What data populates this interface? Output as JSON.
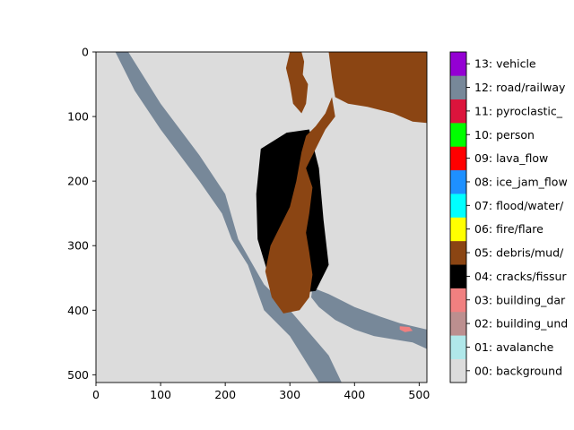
{
  "chart_data": {
    "type": "heatmap",
    "subtype": "segmentation-mask",
    "image_size": [
      512,
      512
    ],
    "x_ticks": [
      "0",
      "100",
      "200",
      "300",
      "400",
      "500"
    ],
    "y_ticks": [
      "0",
      "100",
      "200",
      "300",
      "400",
      "500"
    ],
    "x_tick_values": [
      0,
      100,
      200,
      300,
      400,
      500
    ],
    "y_tick_values": [
      0,
      100,
      200,
      300,
      400,
      500
    ],
    "xlim": [
      0,
      512
    ],
    "ylim": [
      512,
      0
    ],
    "legend_position": "right colorbar",
    "classes": [
      {
        "id": 0,
        "label": "00: background",
        "color": "#dcdcdc"
      },
      {
        "id": 1,
        "label": "01: avalanche",
        "color": "#b0e8ea"
      },
      {
        "id": 2,
        "label": "02: building_und",
        "color": "#bc8f8f"
      },
      {
        "id": 3,
        "label": "03: building_dar",
        "color": "#f08080"
      },
      {
        "id": 4,
        "label": "04: cracks/fissur",
        "color": "#000000"
      },
      {
        "id": 5,
        "label": "05: debris/mud/",
        "color": "#8b4513"
      },
      {
        "id": 6,
        "label": "06: fire/flare",
        "color": "#ffff00"
      },
      {
        "id": 7,
        "label": "07: flood/water/",
        "color": "#00ffff"
      },
      {
        "id": 8,
        "label": "08: ice_jam_flow",
        "color": "#1e90ff"
      },
      {
        "id": 9,
        "label": "09: lava_flow",
        "color": "#ff0000"
      },
      {
        "id": 10,
        "label": "10: person",
        "color": "#00ff00"
      },
      {
        "id": 11,
        "label": "11: pyroclastic_",
        "color": "#dc143c"
      },
      {
        "id": 12,
        "label": "12: road/railway",
        "color": "#778899"
      },
      {
        "id": 13,
        "label": "13: vehicle",
        "color": "#9400d3"
      }
    ],
    "regions": [
      {
        "class": 12,
        "name": "road-left-diagonal",
        "polygon": [
          [
            30,
            0
          ],
          [
            50,
            0
          ],
          [
            100,
            80
          ],
          [
            160,
            160
          ],
          [
            200,
            220
          ],
          [
            220,
            290
          ],
          [
            260,
            360
          ],
          [
            300,
            400
          ],
          [
            360,
            470
          ],
          [
            380,
            512
          ],
          [
            345,
            512
          ],
          [
            300,
            440
          ],
          [
            260,
            400
          ],
          [
            235,
            330
          ],
          [
            210,
            290
          ],
          [
            195,
            250
          ],
          [
            160,
            200
          ],
          [
            100,
            120
          ],
          [
            60,
            60
          ]
        ]
      },
      {
        "class": 12,
        "name": "road-right-branch",
        "polygon": [
          [
            335,
            365
          ],
          [
            360,
            375
          ],
          [
            400,
            395
          ],
          [
            440,
            410
          ],
          [
            470,
            420
          ],
          [
            512,
            430
          ],
          [
            512,
            460
          ],
          [
            490,
            450
          ],
          [
            460,
            445
          ],
          [
            430,
            440
          ],
          [
            400,
            430
          ],
          [
            370,
            415
          ],
          [
            345,
            395
          ],
          [
            333,
            380
          ]
        ]
      },
      {
        "class": 4,
        "name": "cracks-fissure-region",
        "polygon": [
          [
            255,
            150
          ],
          [
            295,
            125
          ],
          [
            330,
            120
          ],
          [
            345,
            180
          ],
          [
            352,
            260
          ],
          [
            360,
            330
          ],
          [
            340,
            370
          ],
          [
            305,
            375
          ],
          [
            280,
            380
          ],
          [
            265,
            340
          ],
          [
            250,
            290
          ],
          [
            248,
            220
          ]
        ]
      },
      {
        "class": 5,
        "name": "debris-top-left-lobe",
        "polygon": [
          [
            300,
            0
          ],
          [
            318,
            0
          ],
          [
            322,
            15
          ],
          [
            320,
            35
          ],
          [
            328,
            50
          ],
          [
            325,
            80
          ],
          [
            318,
            95
          ],
          [
            305,
            80
          ],
          [
            300,
            50
          ],
          [
            294,
            25
          ]
        ]
      },
      {
        "class": 5,
        "name": "debris-top-right",
        "polygon": [
          [
            360,
            0
          ],
          [
            512,
            0
          ],
          [
            512,
            110
          ],
          [
            490,
            108
          ],
          [
            460,
            95
          ],
          [
            420,
            85
          ],
          [
            390,
            80
          ],
          [
            370,
            70
          ],
          [
            365,
            40
          ]
        ]
      },
      {
        "class": 5,
        "name": "debris-main-channel",
        "polygon": [
          [
            365,
            70
          ],
          [
            355,
            95
          ],
          [
            340,
            115
          ],
          [
            325,
            130
          ],
          [
            318,
            155
          ],
          [
            310,
            200
          ],
          [
            300,
            240
          ],
          [
            285,
            270
          ],
          [
            270,
            300
          ],
          [
            262,
            340
          ],
          [
            272,
            380
          ],
          [
            290,
            405
          ],
          [
            315,
            400
          ],
          [
            330,
            380
          ],
          [
            335,
            345
          ],
          [
            330,
            310
          ],
          [
            325,
            280
          ],
          [
            330,
            250
          ],
          [
            335,
            210
          ],
          [
            325,
            180
          ],
          [
            340,
            150
          ],
          [
            355,
            120
          ],
          [
            370,
            100
          ]
        ]
      },
      {
        "class": 3,
        "name": "building-damage-edge",
        "polygon": [
          [
            470,
            425
          ],
          [
            485,
            426
          ],
          [
            490,
            432
          ],
          [
            478,
            434
          ],
          [
            470,
            430
          ]
        ]
      }
    ]
  }
}
